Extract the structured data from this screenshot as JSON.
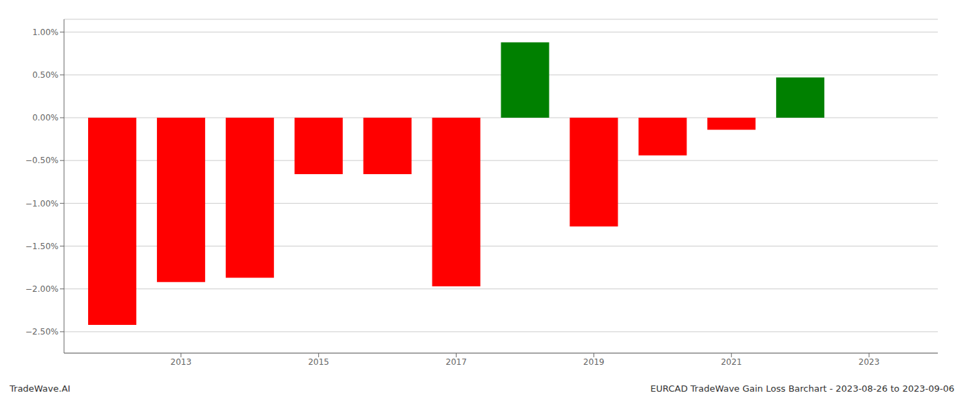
{
  "chart_data": {
    "type": "bar",
    "x": [
      2012,
      2013,
      2014,
      2015,
      2016,
      2017,
      2018,
      2019,
      2020,
      2021,
      2022
    ],
    "values": [
      -2.42,
      -1.92,
      -1.87,
      -0.66,
      -0.66,
      -1.97,
      0.88,
      -1.27,
      -0.44,
      -0.14,
      0.47
    ],
    "colors": [
      "#ff0000",
      "#ff0000",
      "#ff0000",
      "#ff0000",
      "#ff0000",
      "#ff0000",
      "#008000",
      "#ff0000",
      "#ff0000",
      "#ff0000",
      "#008000"
    ],
    "xlim": [
      2011.3,
      2024.0
    ],
    "xticks": [
      2013,
      2015,
      2017,
      2019,
      2021,
      2023
    ],
    "ylim": [
      -2.75,
      1.15
    ],
    "yticks": [
      {
        "value": 1.0,
        "label": "1.00%"
      },
      {
        "value": 0.5,
        "label": "0.50%"
      },
      {
        "value": 0.0,
        "label": "0.00%"
      },
      {
        "value": -0.5,
        "label": "−0.50%"
      },
      {
        "value": -1.0,
        "label": "−1.00%"
      },
      {
        "value": -1.5,
        "label": "−1.50%"
      },
      {
        "value": -2.0,
        "label": "−2.00%"
      },
      {
        "value": -2.5,
        "label": "−2.50%"
      }
    ],
    "grid": true,
    "annotations": [
      "TradeWave.AI",
      "EURCAD TradeWave Gain Loss Barchart - 2023-08-26 to 2023-09-06"
    ]
  }
}
